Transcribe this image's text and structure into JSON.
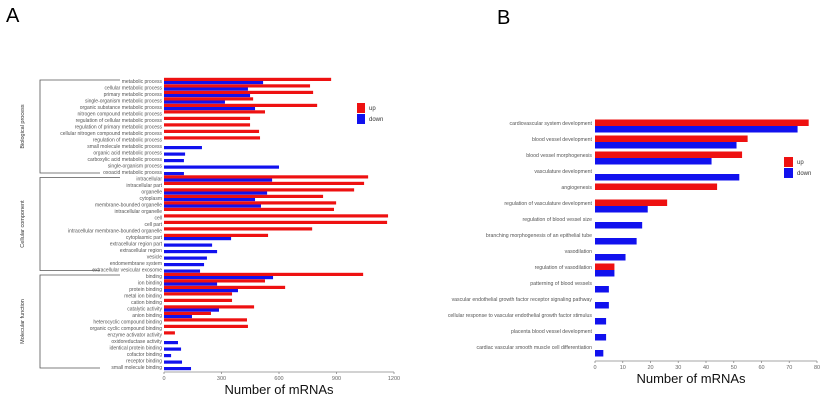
{
  "colors": {
    "up": "#ee1111",
    "down": "#1111ee",
    "axis": "#888888"
  },
  "chart_data": [
    {
      "panel": "A",
      "type": "bar",
      "orientation": "horizontal",
      "xlabel": "Number of mRNAs",
      "ylabel": "",
      "xlim": [
        0,
        1200
      ],
      "xticks": [
        0,
        300,
        600,
        900,
        1200
      ],
      "legend": {
        "position": "top-right",
        "entries": [
          "up",
          "down"
        ]
      },
      "groups": [
        {
          "name": "Biological process",
          "categories": [
            "metabolic process",
            "cellular metabolic process",
            "primary metabolic process",
            "single-organism metabolic process",
            "organic substance metabolic process",
            "nitrogen compound metabolic process",
            "regulation of cellular metabolic process",
            "regulation of primary metabolic process",
            "cellular nitrogen compound metabolic process",
            "regulation of metabolic process",
            "small molecule metabolic process",
            "organic acid metabolic process",
            "carboxylic acid metabolic process",
            "single-organism process",
            "oxoacid metabolic process"
          ],
          "up": [
            872,
            762,
            778,
            465,
            799,
            527,
            449,
            449,
            496,
            501,
            0,
            0,
            0,
            0,
            0
          ],
          "down": [
            517,
            438,
            449,
            318,
            475,
            0,
            0,
            0,
            0,
            0,
            198,
            110,
            104,
            600,
            104
          ]
        },
        {
          "name": "Cellular component",
          "categories": [
            "intracellular",
            "intracellular part",
            "organelle",
            "cytoplasm",
            "membrane-bounded organelle",
            "intracellular organelle",
            "cell",
            "cell part",
            "intracellular membrane-bounded organelle",
            "cytoplasmic part",
            "extracellular region part",
            "extracellular region",
            "vesicle",
            "endomembrane system",
            "extracellular vesicular exosome"
          ],
          "up": [
            1065,
            1044,
            992,
            830,
            898,
            887,
            1169,
            1164,
            773,
            543,
            0,
            0,
            0,
            0,
            0
          ],
          "down": [
            564,
            0,
            538,
            475,
            506,
            0,
            0,
            0,
            0,
            350,
            251,
            277,
            224,
            209,
            188
          ]
        },
        {
          "name": "Molecular function",
          "categories": [
            "binding",
            "ion binding",
            "protein binding",
            "metal ion binding",
            "cation binding",
            "catalytic activity",
            "anion binding",
            "heterocyclic compound binding",
            "organic cyclic compound binding",
            "enzyme activator activity",
            "oxidoreductase activity",
            "identical protein binding",
            "cofactor binding",
            "receptor binding",
            "small molecule binding"
          ],
          "up": [
            1039,
            527,
            632,
            355,
            355,
            470,
            245,
            433,
            438,
            57,
            0,
            0,
            0,
            0,
            0
          ],
          "down": [
            569,
            277,
            386,
            0,
            0,
            287,
            146,
            0,
            0,
            0,
            73,
            89,
            37,
            94,
            141
          ]
        }
      ]
    },
    {
      "panel": "B",
      "type": "bar",
      "orientation": "horizontal",
      "xlabel": "Number of mRNAs",
      "ylabel": "",
      "xlim": [
        0,
        80
      ],
      "xticks": [
        0,
        10,
        20,
        30,
        40,
        50,
        60,
        70,
        80
      ],
      "legend": {
        "position": "right",
        "entries": [
          "up",
          "down"
        ]
      },
      "categories": [
        "cardiovascular system development",
        "blood vessel development",
        "blood vessel morphogenesis",
        "vasculature development",
        "angiogenesis",
        "regulation of vasculature development",
        "regulation of blood vessel size",
        "branching morphogenesis of an epithelial tube",
        "vasodilation",
        "regulation of vasodilation",
        "patterning of blood vessels",
        "vascular endothelial growth factor receptor signaling pathway",
        "cellular response to vascular endothelial growth factor stimulus",
        "placenta blood vessel development",
        "cardiac vascular smooth muscle cell differentiation"
      ],
      "series": [
        {
          "name": "up",
          "values": [
            77,
            55,
            53,
            0,
            44,
            26,
            0,
            0,
            0,
            7,
            0,
            0,
            0,
            0,
            0
          ]
        },
        {
          "name": "down",
          "values": [
            73,
            51,
            42,
            52,
            0,
            19,
            17,
            15,
            11,
            7,
            5,
            5,
            4,
            4,
            3
          ]
        }
      ]
    }
  ]
}
